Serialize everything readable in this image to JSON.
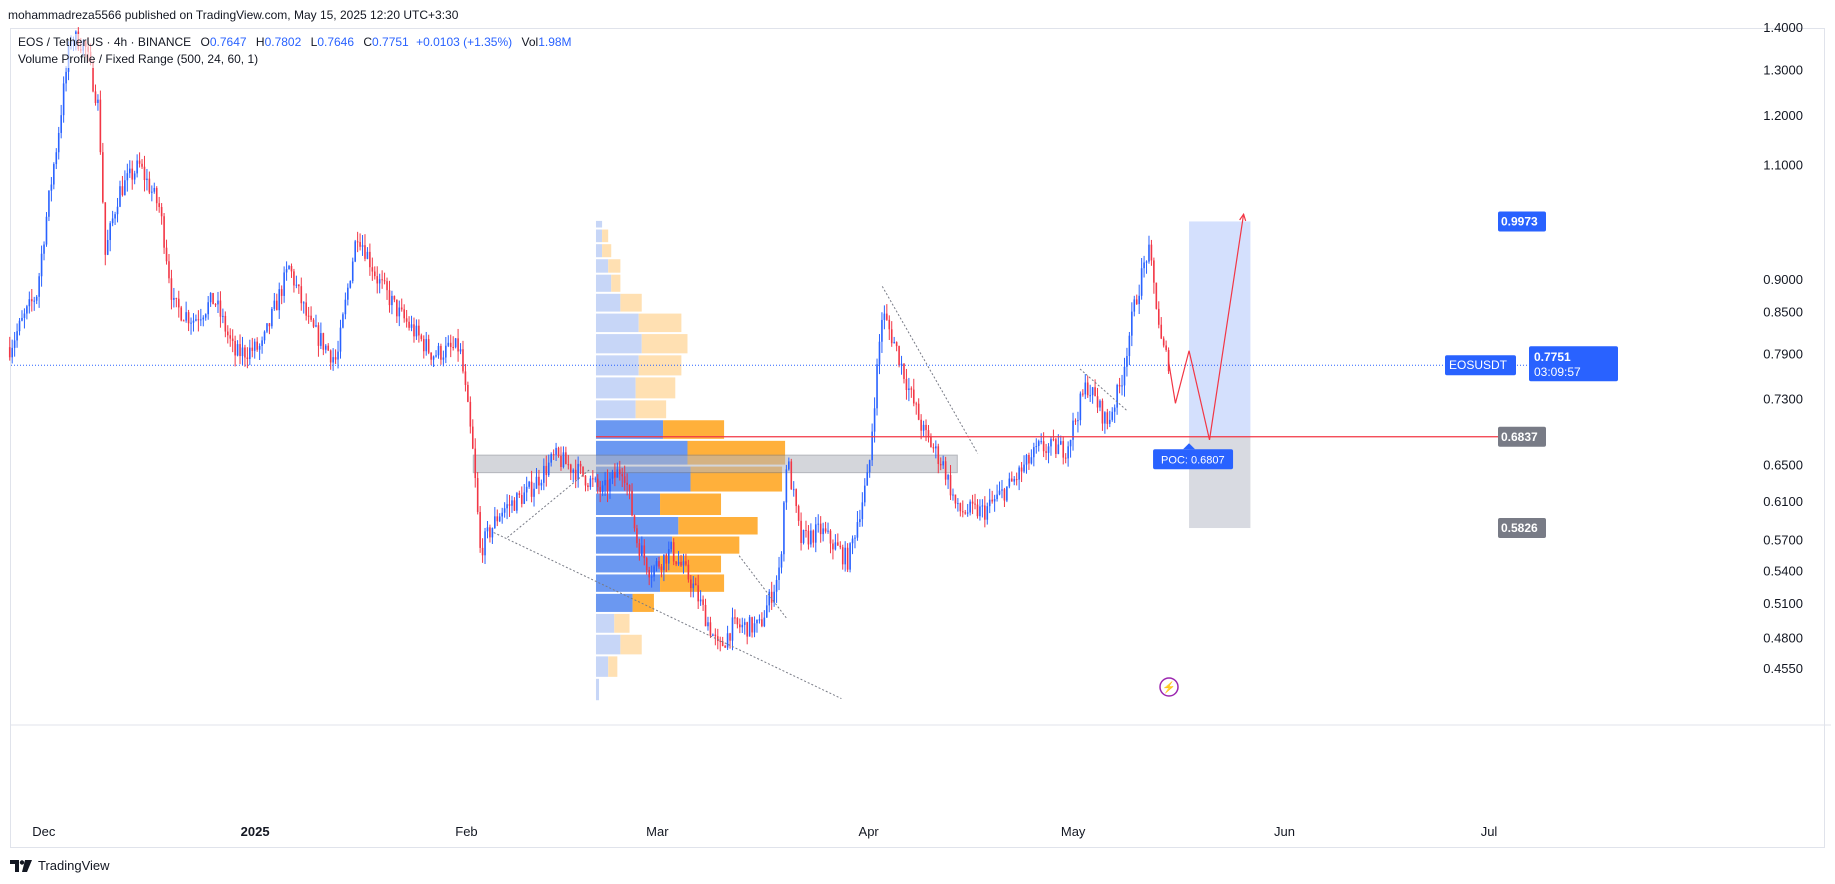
{
  "header": {
    "published_text": "mohammadreza5566 published on TradingView.com, May 15, 2025 12:20 UTC+3:30"
  },
  "legend": {
    "symbol": "EOS / TetherUS · 4h · BINANCE",
    "o_label": "O",
    "o_value": "0.7647",
    "h_label": "H",
    "h_value": "0.7802",
    "l_label": "L",
    "l_value": "0.7646",
    "c_label": "C",
    "c_value": "0.7751",
    "change": "+0.0103 (+1.35%)",
    "vol_label": "Vol",
    "vol_value": "1.98M",
    "indicator": "Volume Profile / Fixed Range (500, 24, 60, 1)"
  },
  "footer": {
    "brand": "TradingView"
  },
  "colors": {
    "up": "#2962ff",
    "down": "#f23645",
    "vp_up": "#5b8def",
    "vp_down": "#ffa726",
    "vp_up_light": "#c7d6f7",
    "vp_down_light": "#ffe0b2",
    "target_zone": "#c5d6fc",
    "stop_zone": "#d1d4dc",
    "poc_line": "#f23645",
    "zone_box": "#b2b5be",
    "trend_line": "#787b86",
    "projection": "#f23645",
    "last_price_bg": "#2962ff",
    "gray_tag_bg": "#787b86",
    "blue_tag_bg": "#2962ff"
  },
  "chart_data": {
    "type": "candlestick",
    "y_axis": {
      "range": [
        0.43,
        1.42
      ],
      "ticks": [
        "1.4000",
        "1.3000",
        "1.2000",
        "1.1000",
        "0.9000",
        "0.8500",
        "0.7900",
        "0.7300",
        "0.6500",
        "0.6100",
        "0.5700",
        "0.5400",
        "0.5100",
        "0.4800",
        "0.4550"
      ]
    },
    "x_axis": {
      "ticks": [
        "Dec",
        "2025",
        "Feb",
        "Mar",
        "Apr",
        "May",
        "Jun",
        "Jul"
      ],
      "bold_ticks": [
        "2025"
      ]
    },
    "price_path": [
      [
        "2024-11-26",
        0.8
      ],
      [
        "2024-11-30",
        0.88
      ],
      [
        "2024-12-03",
        1.15
      ],
      [
        "2024-12-05",
        1.38
      ],
      [
        "2024-12-07",
        1.36
      ],
      [
        "2024-12-09",
        1.22
      ],
      [
        "2024-12-10",
        0.94
      ],
      [
        "2024-12-12",
        1.05
      ],
      [
        "2024-12-15",
        1.1
      ],
      [
        "2024-12-18",
        1.02
      ],
      [
        "2024-12-20",
        0.86
      ],
      [
        "2024-12-23",
        0.84
      ],
      [
        "2024-12-26",
        0.87
      ],
      [
        "2024-12-29",
        0.79
      ],
      [
        "2025-01-02",
        0.8
      ],
      [
        "2025-01-06",
        0.92
      ],
      [
        "2025-01-09",
        0.83
      ],
      [
        "2025-01-13",
        0.78
      ],
      [
        "2025-01-16",
        0.98
      ],
      [
        "2025-01-19",
        0.9
      ],
      [
        "2025-01-22",
        0.85
      ],
      [
        "2025-01-27",
        0.79
      ],
      [
        "2025-01-31",
        0.8
      ],
      [
        "2025-02-02",
        0.66
      ],
      [
        "2025-02-03",
        0.56
      ],
      [
        "2025-02-06",
        0.6
      ],
      [
        "2025-02-10",
        0.62
      ],
      [
        "2025-02-14",
        0.66
      ],
      [
        "2025-02-18",
        0.64
      ],
      [
        "2025-02-21",
        0.62
      ],
      [
        "2025-02-24",
        0.65
      ],
      [
        "2025-02-26",
        0.57
      ],
      [
        "2025-02-28",
        0.54
      ],
      [
        "2025-03-03",
        0.56
      ],
      [
        "2025-03-06",
        0.53
      ],
      [
        "2025-03-10",
        0.47
      ],
      [
        "2025-03-12",
        0.49
      ],
      [
        "2025-03-16",
        0.49
      ],
      [
        "2025-03-19",
        0.54
      ],
      [
        "2025-03-20",
        0.66
      ],
      [
        "2025-03-22",
        0.57
      ],
      [
        "2025-03-25",
        0.58
      ],
      [
        "2025-03-29",
        0.55
      ],
      [
        "2025-04-01",
        0.64
      ],
      [
        "2025-04-03",
        0.85
      ],
      [
        "2025-04-05",
        0.8
      ],
      [
        "2025-04-07",
        0.74
      ],
      [
        "2025-04-09",
        0.69
      ],
      [
        "2025-04-12",
        0.65
      ],
      [
        "2025-04-14",
        0.6
      ],
      [
        "2025-04-18",
        0.6
      ],
      [
        "2025-04-22",
        0.63
      ],
      [
        "2025-04-26",
        0.67
      ],
      [
        "2025-04-30",
        0.67
      ],
      [
        "2025-05-03",
        0.75
      ],
      [
        "2025-05-06",
        0.7
      ],
      [
        "2025-05-08",
        0.75
      ],
      [
        "2025-05-10",
        0.86
      ],
      [
        "2025-05-12",
        0.95
      ],
      [
        "2025-05-13",
        0.88
      ],
      [
        "2025-05-14",
        0.8
      ],
      [
        "2025-05-15",
        0.78
      ]
    ],
    "volume_profile": {
      "anchor_date": "2025-02-20",
      "rows": [
        {
          "low": 0.43,
          "high": 0.448,
          "up": 1,
          "down": 0,
          "highlight": false
        },
        {
          "low": 0.448,
          "high": 0.466,
          "up": 4,
          "down": 3,
          "highlight": false
        },
        {
          "low": 0.466,
          "high": 0.484,
          "up": 8,
          "down": 7,
          "highlight": false
        },
        {
          "low": 0.484,
          "high": 0.502,
          "up": 6,
          "down": 5,
          "highlight": false
        },
        {
          "low": 0.502,
          "high": 0.52,
          "up": 12,
          "down": 7,
          "highlight": true
        },
        {
          "low": 0.52,
          "high": 0.538,
          "up": 21,
          "down": 21,
          "highlight": true
        },
        {
          "low": 0.538,
          "high": 0.556,
          "up": 21,
          "down": 20,
          "highlight": true
        },
        {
          "low": 0.556,
          "high": 0.575,
          "up": 25,
          "down": 22,
          "highlight": true
        },
        {
          "low": 0.575,
          "high": 0.595,
          "up": 27,
          "down": 26,
          "highlight": true
        },
        {
          "low": 0.595,
          "high": 0.62,
          "up": 21,
          "down": 20,
          "highlight": true
        },
        {
          "low": 0.62,
          "high": 0.65,
          "up": 31,
          "down": 30,
          "highlight": true
        },
        {
          "low": 0.65,
          "high": 0.68,
          "up": 30,
          "down": 32,
          "highlight": true
        },
        {
          "low": 0.68,
          "high": 0.705,
          "up": 22,
          "down": 20,
          "highlight": true
        },
        {
          "low": 0.705,
          "high": 0.73,
          "up": 13,
          "down": 10,
          "highlight": false
        },
        {
          "low": 0.73,
          "high": 0.76,
          "up": 13,
          "down": 13,
          "highlight": false
        },
        {
          "low": 0.76,
          "high": 0.79,
          "up": 14,
          "down": 14,
          "highlight": false
        },
        {
          "low": 0.79,
          "high": 0.82,
          "up": 15,
          "down": 15,
          "highlight": false
        },
        {
          "low": 0.82,
          "high": 0.85,
          "up": 14,
          "down": 14,
          "highlight": false
        },
        {
          "low": 0.85,
          "high": 0.88,
          "up": 8,
          "down": 7,
          "highlight": false
        },
        {
          "low": 0.88,
          "high": 0.91,
          "up": 5,
          "down": 3,
          "highlight": false
        },
        {
          "low": 0.91,
          "high": 0.935,
          "up": 4,
          "down": 4,
          "highlight": false
        },
        {
          "low": 0.935,
          "high": 0.96,
          "up": 2,
          "down": 3,
          "highlight": false
        },
        {
          "low": 0.96,
          "high": 0.985,
          "up": 2,
          "down": 2,
          "highlight": false
        },
        {
          "low": 0.985,
          "high": 1.0,
          "up": 2,
          "down": 0,
          "highlight": false
        }
      ]
    },
    "poc": {
      "price": 0.6807,
      "label": "POC: 0.6807"
    },
    "zone_box": {
      "from": "2025-02-02",
      "to": "2025-04-14",
      "low": 0.642,
      "high": 0.662
    },
    "trend_lines": [
      {
        "from": [
          "2025-02-05",
          0.578
        ],
        "to": [
          "2025-03-28",
          0.432
        ]
      },
      {
        "from": [
          "2025-02-07",
          0.573
        ],
        "to": [
          "2025-02-19",
          0.645
        ]
      },
      {
        "from": [
          "2025-03-13",
          0.555
        ],
        "to": [
          "2025-03-20",
          0.497
        ]
      },
      {
        "from": [
          "2025-04-03",
          0.89
        ],
        "to": [
          "2025-04-17",
          0.664
        ]
      },
      {
        "from": [
          "2025-05-02",
          0.77
        ],
        "to": [
          "2025-05-09",
          0.715
        ]
      }
    ],
    "position": {
      "from": "2025-05-18",
      "to": "2025-05-27",
      "entry": 0.6837,
      "target": 0.9973,
      "stop": 0.5826
    },
    "projection_path": [
      [
        "2025-05-15",
        0.78
      ],
      [
        "2025-05-16",
        0.725
      ],
      [
        "2025-05-18",
        0.795
      ],
      [
        "2025-05-21",
        0.68
      ],
      [
        "2025-05-26",
        1.01
      ]
    ],
    "price_tags": [
      {
        "value": 0.9973,
        "label": "0.9973",
        "style": "blue"
      },
      {
        "value": 0.7751,
        "label": "0.7751",
        "style": "last"
      },
      {
        "value": 0.6837,
        "label": "0.6837",
        "style": "gray"
      },
      {
        "value": 0.5826,
        "label": "0.5826",
        "style": "gray"
      }
    ],
    "last_price": {
      "value": 0.7751,
      "symbol_tag": "EOSUSDT",
      "countdown": "03:09:57"
    },
    "events_marker": {
      "symbol": "⚡"
    }
  }
}
